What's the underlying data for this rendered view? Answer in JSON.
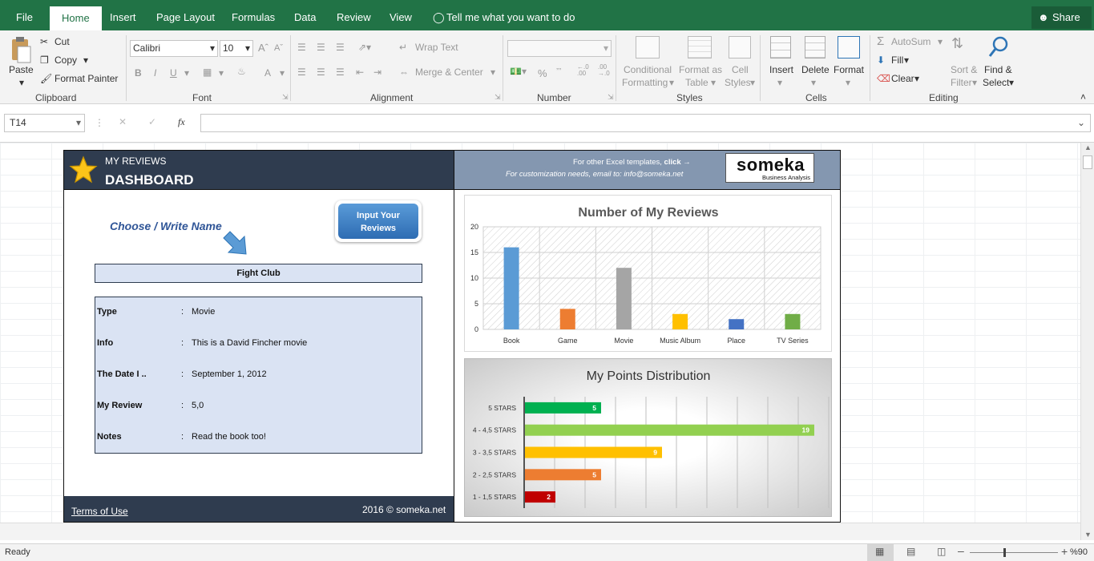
{
  "tabs": [
    "File",
    "Home",
    "Insert",
    "Page Layout",
    "Formulas",
    "Data",
    "Review",
    "View"
  ],
  "tell_me": "Tell me what you want to do",
  "share": "Share",
  "clipboard": {
    "paste": "Paste",
    "cut": "Cut",
    "copy": "Copy",
    "format_painter": "Format Painter",
    "label": "Clipboard"
  },
  "font": {
    "name": "Calibri",
    "size": "10",
    "label": "Font"
  },
  "alignment": {
    "wrap": "Wrap Text",
    "merge": "Merge & Center",
    "label": "Alignment"
  },
  "number": {
    "pct": "%",
    "label": "Number"
  },
  "styles": {
    "cond1": "Conditional",
    "cond2": "Formatting",
    "fmt1": "Format as",
    "fmt2": "Table",
    "cell1": "Cell",
    "cell2": "Styles",
    "label": "Styles"
  },
  "cells": {
    "insert": "Insert",
    "delete": "Delete",
    "format": "Format",
    "label": "Cells"
  },
  "editing": {
    "autosum": "AutoSum",
    "fill": "Fill",
    "clear": "Clear",
    "sort1": "Sort &",
    "sort2": "Filter",
    "find1": "Find &",
    "find2": "Select",
    "label": "Editing"
  },
  "formula_bar": {
    "name_box": "T14",
    "fx": "fx",
    "content": ""
  },
  "dashboard": {
    "title_small": "MY REVIEWS",
    "title_big": "DASHBOARD",
    "promo1_pre": "For other Excel templates, ",
    "promo1_link": "click →",
    "promo2": "For customization needs, email to: info@someka.net",
    "logo_text": "someka",
    "logo_sub": "Business Analysis",
    "choose_label": "Choose / Write Name",
    "input_btn1": "Input Your",
    "input_btn2": "Reviews",
    "selected_name": "Fight Club",
    "details": [
      {
        "key": "Type",
        "value": "Movie"
      },
      {
        "key": "Info",
        "value": "This is a David Fincher movie"
      },
      {
        "key": "The Date I ..",
        "value": "September 1, 2012"
      },
      {
        "key": "My Review",
        "value": "5,0"
      },
      {
        "key": "Notes",
        "value": "Read the book too!"
      }
    ],
    "colon": ":",
    "terms": "Terms of Use",
    "copyright": "2016 © someka.net"
  },
  "chart_data": [
    {
      "type": "bar",
      "title": "Number of My Reviews",
      "categories": [
        "Book",
        "Game",
        "Movie",
        "Music Album",
        "Place",
        "TV Series"
      ],
      "values": [
        16,
        4,
        12,
        3,
        2,
        3
      ],
      "colors": [
        "#5b9bd5",
        "#ed7d31",
        "#a5a5a5",
        "#ffc000",
        "#4472c4",
        "#70ad47"
      ],
      "ylim": [
        0,
        20
      ],
      "yticks": [
        0,
        5,
        10,
        15,
        20
      ],
      "grid": true
    },
    {
      "type": "bar",
      "orientation": "horizontal",
      "title": "My Points Distribution",
      "categories": [
        "5 STARS",
        "4 - 4,5 STARS",
        "3 - 3,5 STARS",
        "2 - 2,5 STARS",
        "1 - 1,5 STARS"
      ],
      "values": [
        5,
        19,
        9,
        5,
        2
      ],
      "colors": [
        "#00b050",
        "#92d050",
        "#ffc000",
        "#ed7d31",
        "#c00000"
      ],
      "xlim": [
        0,
        20
      ],
      "data_labels": true
    }
  ],
  "status": {
    "ready": "Ready",
    "zoom": "%90"
  }
}
